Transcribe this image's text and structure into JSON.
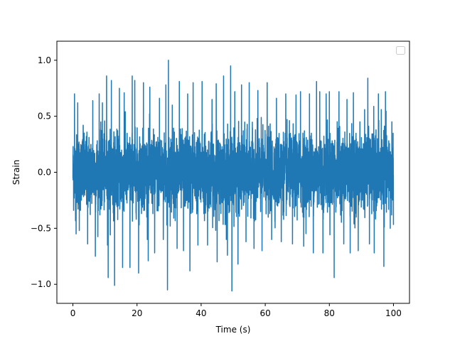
{
  "chart_data": {
    "type": "line",
    "title": "",
    "xlabel": "Time (s)",
    "ylabel": "Strain",
    "xlim": [
      -5,
      105
    ],
    "ylim": [
      -1.17,
      1.17
    ],
    "x_ticks": [
      0,
      20,
      40,
      60,
      80,
      100
    ],
    "x_tick_labels": [
      "0",
      "20",
      "40",
      "60",
      "80",
      "100"
    ],
    "y_ticks": [
      -1.0,
      -0.5,
      0.0,
      0.5,
      1.0
    ],
    "y_tick_labels": [
      "−1.0",
      "−0.5",
      "0.0",
      "0.5",
      "1.0"
    ],
    "grid": false,
    "legend": {
      "placement": "top-right",
      "entries": []
    },
    "series": [
      {
        "color": "#1f77b4",
        "x_range": [
          0,
          100
        ],
        "description_envelope": {
          "typical_amplitude": 0.3,
          "peaks": [
            {
              "x": 0.5,
              "y": 0.7
            },
            {
              "x": 1.0,
              "y": -0.55
            },
            {
              "x": 1.5,
              "y": 0.62
            },
            {
              "x": 2.0,
              "y": -0.52
            },
            {
              "x": 3.2,
              "y": 0.42
            },
            {
              "x": 4.6,
              "y": -0.64
            },
            {
              "x": 6.2,
              "y": 0.64
            },
            {
              "x": 7.0,
              "y": -0.75
            },
            {
              "x": 8.2,
              "y": 0.7
            },
            {
              "x": 9.2,
              "y": 0.62
            },
            {
              "x": 10.5,
              "y": 0.86
            },
            {
              "x": 10.8,
              "y": -0.65
            },
            {
              "x": 11.0,
              "y": -0.94
            },
            {
              "x": 12.0,
              "y": 0.82
            },
            {
              "x": 13.0,
              "y": -1.01
            },
            {
              "x": 14.5,
              "y": 0.75
            },
            {
              "x": 15.5,
              "y": -0.85
            },
            {
              "x": 16.0,
              "y": 0.71
            },
            {
              "x": 17.8,
              "y": -0.85
            },
            {
              "x": 18.5,
              "y": 0.86
            },
            {
              "x": 19.3,
              "y": 0.82
            },
            {
              "x": 20.5,
              "y": -0.9
            },
            {
              "x": 22.0,
              "y": 0.8
            },
            {
              "x": 23.5,
              "y": -0.79
            },
            {
              "x": 24.0,
              "y": 0.76
            },
            {
              "x": 25.5,
              "y": -0.72
            },
            {
              "x": 27.0,
              "y": 0.66
            },
            {
              "x": 28.2,
              "y": -0.6
            },
            {
              "x": 29.0,
              "y": 0.78
            },
            {
              "x": 29.5,
              "y": -1.05
            },
            {
              "x": 29.8,
              "y": 1.0
            },
            {
              "x": 31.0,
              "y": 0.6
            },
            {
              "x": 32.5,
              "y": -0.68
            },
            {
              "x": 33.2,
              "y": 0.81
            },
            {
              "x": 34.5,
              "y": -0.7
            },
            {
              "x": 35.8,
              "y": 0.7
            },
            {
              "x": 36.5,
              "y": -0.88
            },
            {
              "x": 37.5,
              "y": 0.8
            },
            {
              "x": 39.0,
              "y": -0.65
            },
            {
              "x": 40.3,
              "y": 0.81
            },
            {
              "x": 42.0,
              "y": -0.65
            },
            {
              "x": 43.4,
              "y": 0.65
            },
            {
              "x": 44.7,
              "y": 0.79
            },
            {
              "x": 45.0,
              "y": -0.8
            },
            {
              "x": 47.0,
              "y": 0.86
            },
            {
              "x": 48.2,
              "y": -0.74
            },
            {
              "x": 49.2,
              "y": 0.95
            },
            {
              "x": 49.6,
              "y": -1.06
            },
            {
              "x": 50.5,
              "y": 0.72
            },
            {
              "x": 51.5,
              "y": -0.82
            },
            {
              "x": 52.6,
              "y": 0.78
            },
            {
              "x": 54.0,
              "y": -0.62
            },
            {
              "x": 55.0,
              "y": 0.8
            },
            {
              "x": 56.5,
              "y": -0.68
            },
            {
              "x": 57.7,
              "y": 0.73
            },
            {
              "x": 59.0,
              "y": -0.7
            },
            {
              "x": 60.6,
              "y": 0.8
            },
            {
              "x": 62.0,
              "y": -0.6
            },
            {
              "x": 63.5,
              "y": 0.66
            },
            {
              "x": 65.0,
              "y": -0.62
            },
            {
              "x": 66.4,
              "y": 0.7
            },
            {
              "x": 68.5,
              "y": -0.64
            },
            {
              "x": 69.6,
              "y": 0.69
            },
            {
              "x": 71.0,
              "y": 0.72
            },
            {
              "x": 72.0,
              "y": -0.66
            },
            {
              "x": 73.8,
              "y": 0.7
            },
            {
              "x": 75.0,
              "y": -0.72
            },
            {
              "x": 76.0,
              "y": 0.81
            },
            {
              "x": 77.0,
              "y": 0.72
            },
            {
              "x": 78.0,
              "y": -0.72
            },
            {
              "x": 79.0,
              "y": 0.7
            },
            {
              "x": 80.0,
              "y": 0.72
            },
            {
              "x": 81.5,
              "y": -0.94
            },
            {
              "x": 83.0,
              "y": 0.72
            },
            {
              "x": 84.5,
              "y": -0.64
            },
            {
              "x": 85.5,
              "y": 0.65
            },
            {
              "x": 86.5,
              "y": -0.72
            },
            {
              "x": 87.5,
              "y": 0.71
            },
            {
              "x": 89.0,
              "y": -0.7
            },
            {
              "x": 91.0,
              "y": 0.56
            },
            {
              "x": 92.0,
              "y": 0.84
            },
            {
              "x": 92.5,
              "y": -0.64
            },
            {
              "x": 94.0,
              "y": -0.72
            },
            {
              "x": 95.3,
              "y": 0.7
            },
            {
              "x": 96.2,
              "y": 0.56
            },
            {
              "x": 97.0,
              "y": -0.84
            },
            {
              "x": 97.5,
              "y": 0.72
            },
            {
              "x": 99.0,
              "y": -0.5
            },
            {
              "x": 99.5,
              "y": 0.45
            },
            {
              "x": 100.0,
              "y": -0.47
            }
          ]
        }
      }
    ]
  }
}
